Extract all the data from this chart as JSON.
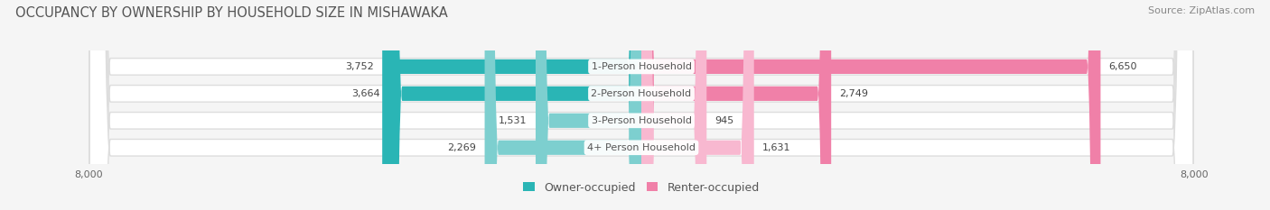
{
  "title": "OCCUPANCY BY OWNERSHIP BY HOUSEHOLD SIZE IN MISHAWAKA",
  "source": "Source: ZipAtlas.com",
  "categories": [
    "1-Person Household",
    "2-Person Household",
    "3-Person Household",
    "4+ Person Household"
  ],
  "owner_values": [
    3752,
    3664,
    1531,
    2269
  ],
  "renter_values": [
    6650,
    2749,
    945,
    1631
  ],
  "max_val": 8000,
  "owner_color_dark": "#2ab5b5",
  "owner_color_light": "#7dcfcf",
  "renter_color_dark": "#f080a8",
  "renter_color_light": "#f8b8d0",
  "bg_color": "#f5f5f5",
  "bar_bg_color": "#ffffff",
  "bar_edge_color": "#dddddd",
  "title_fontsize": 10.5,
  "source_fontsize": 8,
  "label_fontsize": 8,
  "tick_fontsize": 8,
  "legend_fontsize": 9
}
